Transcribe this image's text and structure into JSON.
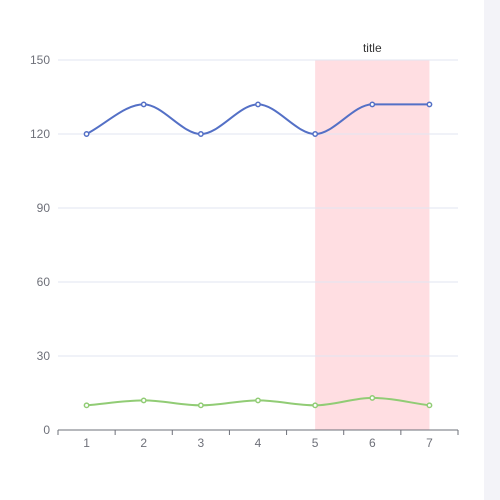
{
  "chart_data": {
    "type": "line",
    "x": [
      1,
      2,
      3,
      4,
      5,
      6,
      7
    ],
    "categories": [
      "1",
      "2",
      "3",
      "4",
      "5",
      "6",
      "7"
    ],
    "ylim": [
      0,
      150
    ],
    "yticks": [
      0,
      30,
      60,
      90,
      120,
      150
    ],
    "grid": true,
    "smooth": true,
    "series": [
      {
        "values": [
          120,
          132,
          120,
          132,
          120,
          132,
          132
        ],
        "color": "#5470c6"
      },
      {
        "values": [
          10,
          12,
          10,
          12,
          10,
          13,
          10
        ],
        "color": "#91cc75"
      }
    ],
    "mark_area": {
      "from_x": 5,
      "to_x": 7,
      "label": "title",
      "color": "#ffdee2"
    },
    "colors": {
      "grid": "#e0e6f1",
      "axis": "#6e7079"
    }
  }
}
